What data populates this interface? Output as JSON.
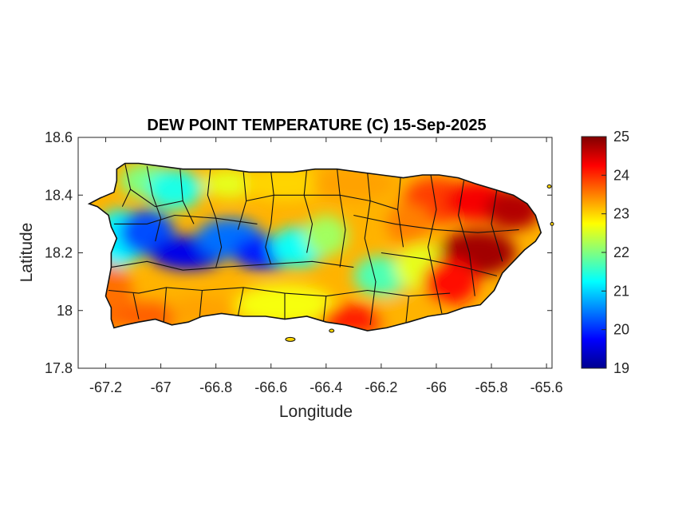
{
  "map": {
    "title": "DEW POINT TEMPERATURE (C) 15-Sep-2025",
    "xlabel": "Longitude",
    "ylabel": "Latitude",
    "xlim": [
      -67.3,
      -65.58
    ],
    "ylim": [
      17.8,
      18.6
    ],
    "x_ticks": [
      "-67.2",
      "-67",
      "-66.8",
      "-66.6",
      "-66.4",
      "-66.2",
      "-66",
      "-65.8",
      "-65.6"
    ],
    "x_tick_values": [
      -67.2,
      -67.0,
      -66.8,
      -66.6,
      -66.4,
      -66.2,
      -66.0,
      -65.8,
      -65.6
    ],
    "y_ticks": [
      "17.8",
      "18",
      "18.2",
      "18.4",
      "18.6"
    ],
    "y_tick_values": [
      17.8,
      18.0,
      18.2,
      18.4,
      18.6
    ],
    "colorbar": {
      "min": 19,
      "max": 25,
      "ticks": [
        "19",
        "20",
        "21",
        "22",
        "23",
        "24",
        "25"
      ],
      "tick_values": [
        19,
        20,
        21,
        22,
        23,
        24,
        25
      ],
      "colormap": "jet",
      "colors": [
        "#00008f",
        "#0000ff",
        "#0080ff",
        "#00ffff",
        "#80ff80",
        "#ffff00",
        "#ff8000",
        "#ff0000",
        "#800000"
      ]
    },
    "region": "Puerto Rico",
    "field": "dew point temperature (C)"
  }
}
